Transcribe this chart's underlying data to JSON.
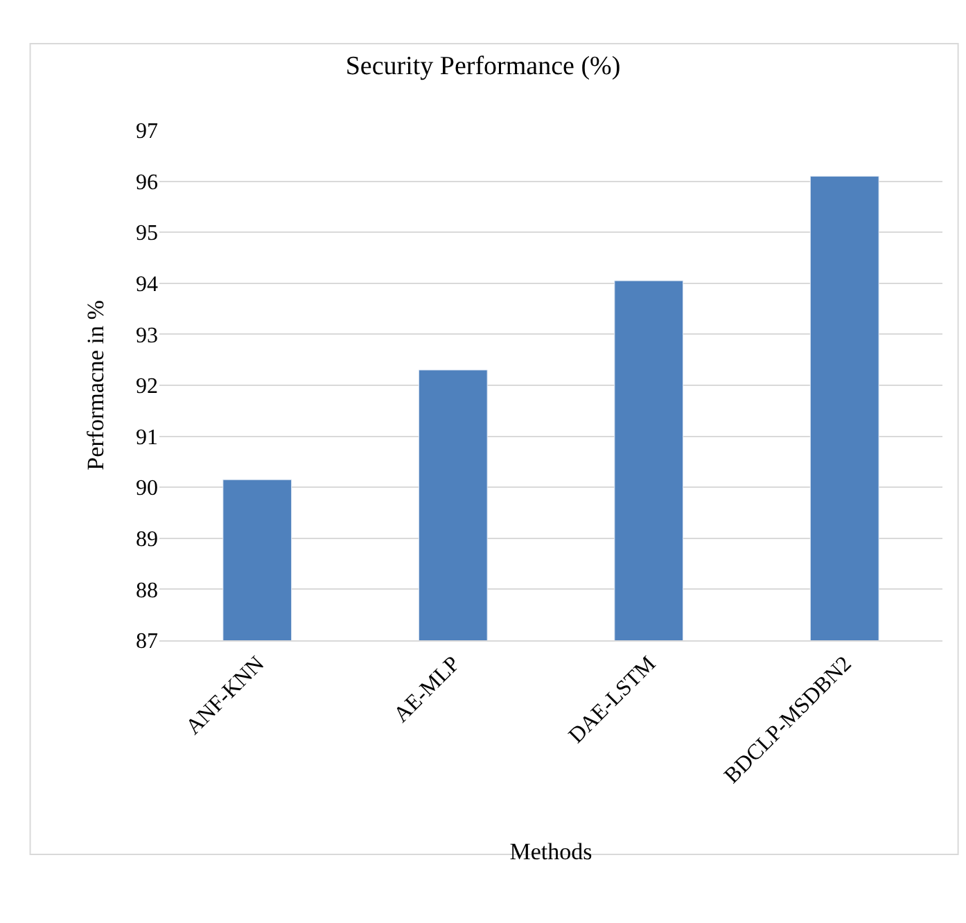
{
  "chart_data": {
    "type": "bar",
    "title": "Security Performance (%)",
    "xlabel": "Methods",
    "ylabel": "Performacne in %",
    "categories": [
      "ANF-KNN",
      "AE-MLP",
      "DAE-LSTM",
      "BDCLP-MSDBN2"
    ],
    "values": [
      90.15,
      92.3,
      94.05,
      96.1
    ],
    "color": "#4f81bd",
    "ylim": [
      87,
      97
    ],
    "yticks": [
      87,
      88,
      89,
      90,
      91,
      92,
      93,
      94,
      95,
      96,
      97
    ],
    "grid": "y",
    "legend": false
  }
}
